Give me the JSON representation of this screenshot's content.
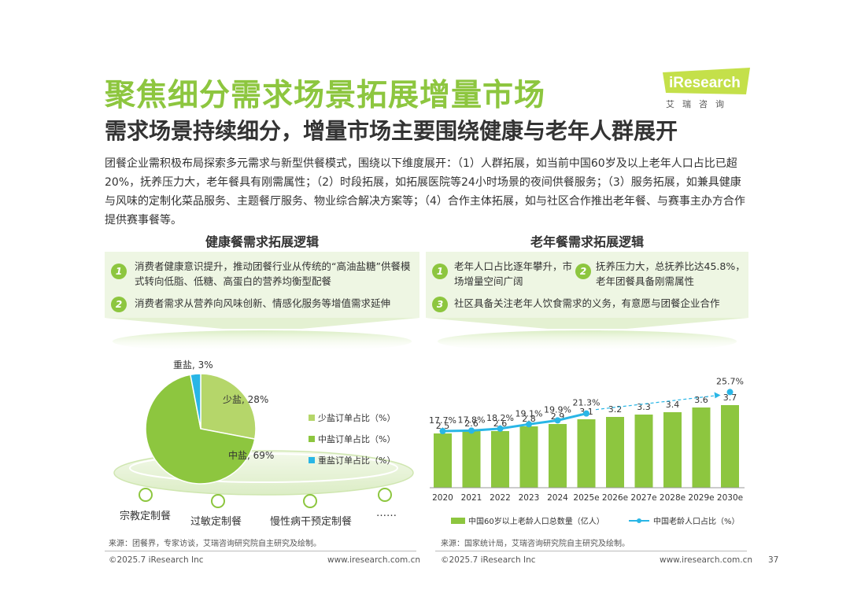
{
  "header": {
    "title": "聚焦细分需求场景拓展增量市场",
    "subtitle": "需求场景持续细分，增量市场主要围绕健康与老年人群展开",
    "logo_text": "iResearch",
    "logo_cn": "艾瑞咨询"
  },
  "intro": "团餐企业需积极布局探索多元需求与新型供餐模式，围绕以下维度展开：（1）人群拓展，如当前中国60岁及以上老年人口占比已超20%，抚养压力大，老年餐具有刚需属性；（2）时段拓展，如拓展医院等24小时场景的夜间供餐服务；（3）服务拓展，如兼具健康与风味的定制化菜品服务、主题餐厅服务、物业综合解决方案等；（4）合作主体拓展，如与社区合作推出老年餐、与赛事主办方合作提供赛事餐等。",
  "left": {
    "heading": "健康餐需求拓展逻辑",
    "items": [
      {
        "num": "1",
        "text": "消费者健康意识提升，推动团餐行业从传统的“高油盐糖”供餐模式转向低脂、低糖、高蛋白的营养均衡型配餐"
      },
      {
        "num": "2",
        "text": "消费者需求从营养向风味创新、情感化服务等增值需求延伸"
      }
    ],
    "scenarios": [
      "宗教定制餐",
      "过敏定制餐",
      "慢性病干预定制餐",
      "……"
    ],
    "source": "来源：团餐界，专家访谈，艾瑞咨询研究院自主研究及绘制。"
  },
  "right": {
    "heading": "老年餐需求拓展逻辑",
    "items": [
      {
        "num": "1",
        "text": "老年人口占比逐年攀升，市场增量空间广阔"
      },
      {
        "num": "2",
        "text": "抚养压力大，总抚养比达45.8%，老年团餐具备刚需属性"
      },
      {
        "num": "3",
        "text": "社区具备关注老年人饮食需求的义务，有意愿与团餐企业合作"
      }
    ],
    "source": "来源：国家统计局，艾瑞咨询研究院自主研究及绘制。"
  },
  "footer": {
    "copyright_left": "©2025.7 iResearch Inc",
    "site_left": "www.iresearch.com.cn",
    "copyright_right": "©2025.7 iResearch Inc",
    "site_right": "www.iresearch.com.cn",
    "page": "37"
  },
  "colors": {
    "green": "#8dc63f",
    "cyan": "#29b6e6",
    "light_green_bg": "#eef6e3"
  },
  "chart_data": [
    {
      "type": "pie",
      "labels": [
        "少盐订单占比（%）",
        "中盐订单占比（%）",
        "重盐订单占比（%）"
      ],
      "slice_labels": [
        "少盐, 28%",
        "中盐, 69%",
        "重盐, 3%"
      ],
      "values": [
        28,
        69,
        3
      ],
      "colors": [
        "#b5d66a",
        "#8dc63f",
        "#29b6e6"
      ],
      "legend": "right"
    },
    {
      "type": "bar",
      "categories": [
        "2020",
        "2021",
        "2022",
        "2023",
        "2024",
        "2025e",
        "2026e",
        "2027e",
        "2028e",
        "2029e",
        "2030e"
      ],
      "series": [
        {
          "name": "中国60岁以上老龄人口总数量（亿人）",
          "type": "bar",
          "values": [
            2.5,
            2.6,
            2.6,
            2.8,
            2.9,
            3.1,
            3.2,
            3.3,
            3.4,
            3.6,
            3.7
          ],
          "labels": [
            "2.5",
            "2.6",
            "2.6",
            "2.8",
            "2.9",
            "3.1",
            "3.2",
            "3.3",
            "3.4",
            "3.6",
            "3.7"
          ]
        },
        {
          "name": "中国老龄人口占比（%）",
          "type": "line",
          "values": [
            17.7,
            17.8,
            18.2,
            19.1,
            19.9,
            21.3,
            null,
            null,
            null,
            null,
            25.7
          ],
          "labels": [
            "17.7%",
            "17.8%",
            "18.2%",
            "19.1%",
            "19.9%",
            "21.3%",
            "",
            "",
            "",
            "",
            "25.7%"
          ]
        }
      ],
      "legend": "bottom"
    }
  ]
}
